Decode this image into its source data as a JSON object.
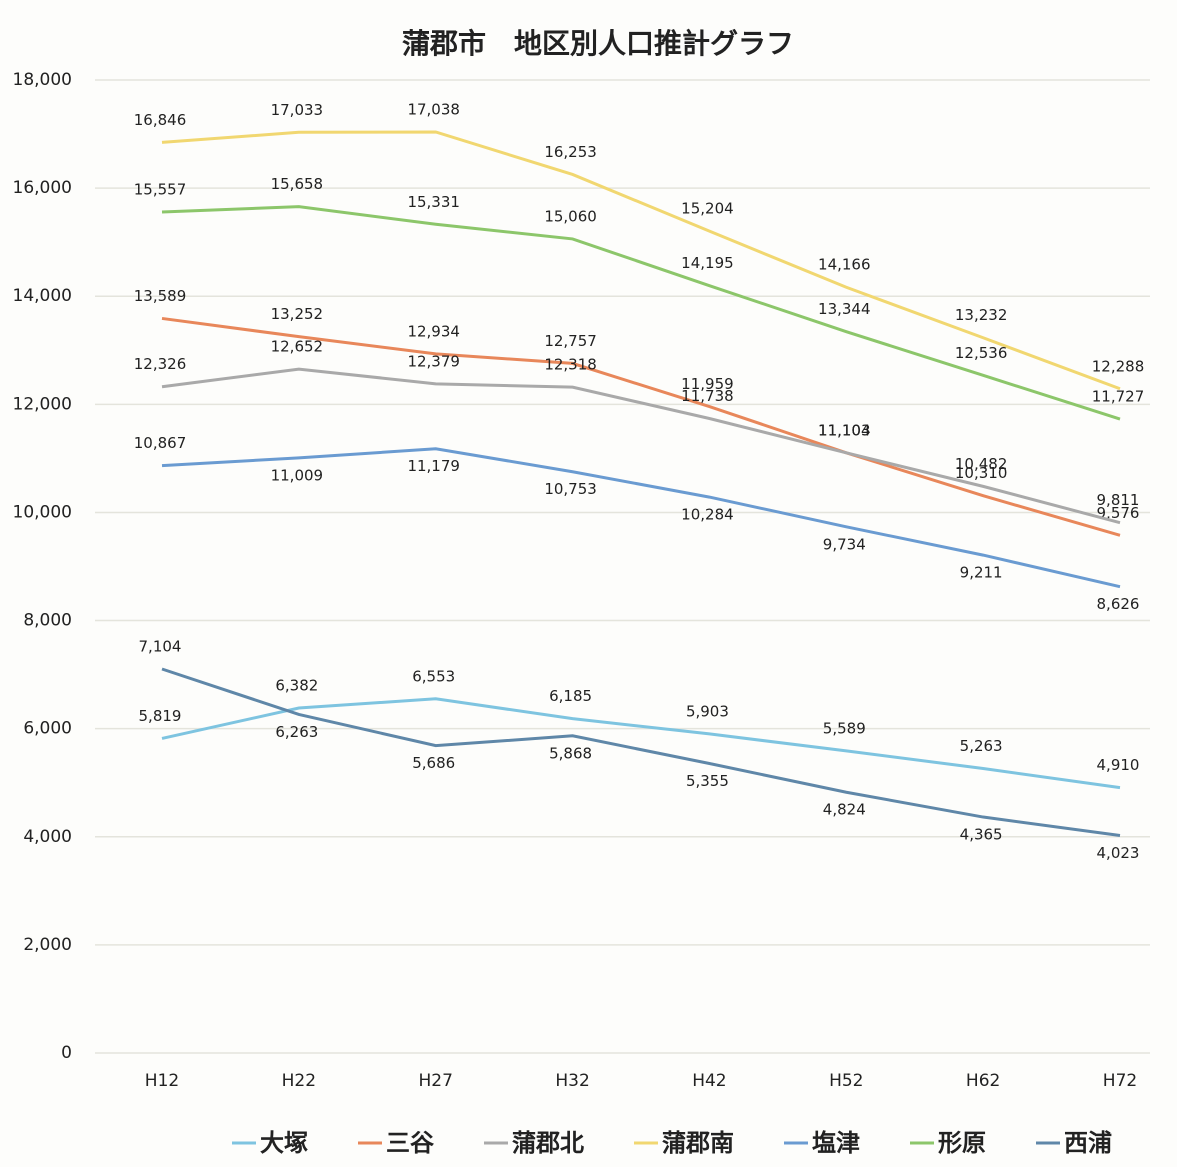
{
  "chart_data": {
    "type": "line",
    "title": "蒲郡市　地区別人口推計グラフ",
    "categories": [
      "H12",
      "H22",
      "H27",
      "H32",
      "H42",
      "H52",
      "H62",
      "H72"
    ],
    "series": [
      {
        "name": "大塚",
        "color": "#7ec4e0",
        "values": [
          5819,
          6382,
          6553,
          6185,
          5903,
          5589,
          5263,
          4910
        ],
        "value_labels": [
          "5,819",
          "6,382",
          "6,553",
          "6,185",
          "5,903",
          "5,589",
          "5,263",
          "4,910"
        ]
      },
      {
        "name": "三谷",
        "color": "#e8875a",
        "values": [
          13589,
          13252,
          12934,
          12757,
          11959,
          11104,
          10310,
          9576
        ],
        "value_labels": [
          "13,589",
          "13,252",
          "12,934",
          "12,757",
          "11,959",
          "11,104",
          "10,310",
          "9,576"
        ]
      },
      {
        "name": "蒲郡北",
        "color": "#a9a9a9",
        "values": [
          12326,
          12652,
          12379,
          12318,
          11738,
          11103,
          10482,
          9811
        ],
        "value_labels": [
          "12,326",
          "12,652",
          "12,379",
          "12,318",
          "11,738",
          "11,103",
          "10,482",
          "9,811"
        ]
      },
      {
        "name": "蒲郡南",
        "color": "#f1d770",
        "values": [
          16846,
          17033,
          17038,
          16253,
          15204,
          14166,
          13232,
          12288
        ],
        "value_labels": [
          "16,846",
          "17,033",
          "17,038",
          "16,253",
          "15,204",
          "14,166",
          "13,232",
          "12,288"
        ]
      },
      {
        "name": "塩津",
        "color": "#6a9bd1",
        "values": [
          10867,
          11009,
          11179,
          10753,
          10284,
          9734,
          9211,
          8626
        ],
        "value_labels": [
          "10,867",
          "11,009",
          "11,179",
          "10,753",
          "10,284",
          "9,734",
          "9,211",
          "8,626"
        ]
      },
      {
        "name": "形原",
        "color": "#8cc66a",
        "values": [
          15557,
          15658,
          15331,
          15060,
          14195,
          13344,
          12536,
          11727
        ],
        "value_labels": [
          "15,557",
          "15,658",
          "15,331",
          "15,060",
          "14,195",
          "13,344",
          "12,536",
          "11,727"
        ]
      },
      {
        "name": "西浦",
        "color": "#5f87a8",
        "values": [
          7104,
          6263,
          5686,
          5868,
          5355,
          4824,
          4365,
          4023
        ],
        "value_labels": [
          "7,104",
          "6,263",
          "5,686",
          "5,868",
          "5,355",
          "4,824",
          "4,365",
          "4,023"
        ]
      }
    ],
    "ylim": [
      0,
      18000
    ],
    "yticks": [
      0,
      {
        "value": 2000,
        "label": "2,000"
      },
      {
        "value": 4000,
        "label": "4,000"
      },
      {
        "value": 6000,
        "label": "6,000"
      },
      {
        "value": 8000,
        "label": "8,000"
      },
      {
        "value": 10000,
        "label": "10,000"
      },
      {
        "value": 12000,
        "label": "12,000"
      },
      {
        "value": 14000,
        "label": "14,000"
      },
      {
        "value": 16000,
        "label": "16,000"
      },
      {
        "value": 18000,
        "label": "18,000"
      }
    ],
    "grid": true,
    "legend": "bottom"
  }
}
